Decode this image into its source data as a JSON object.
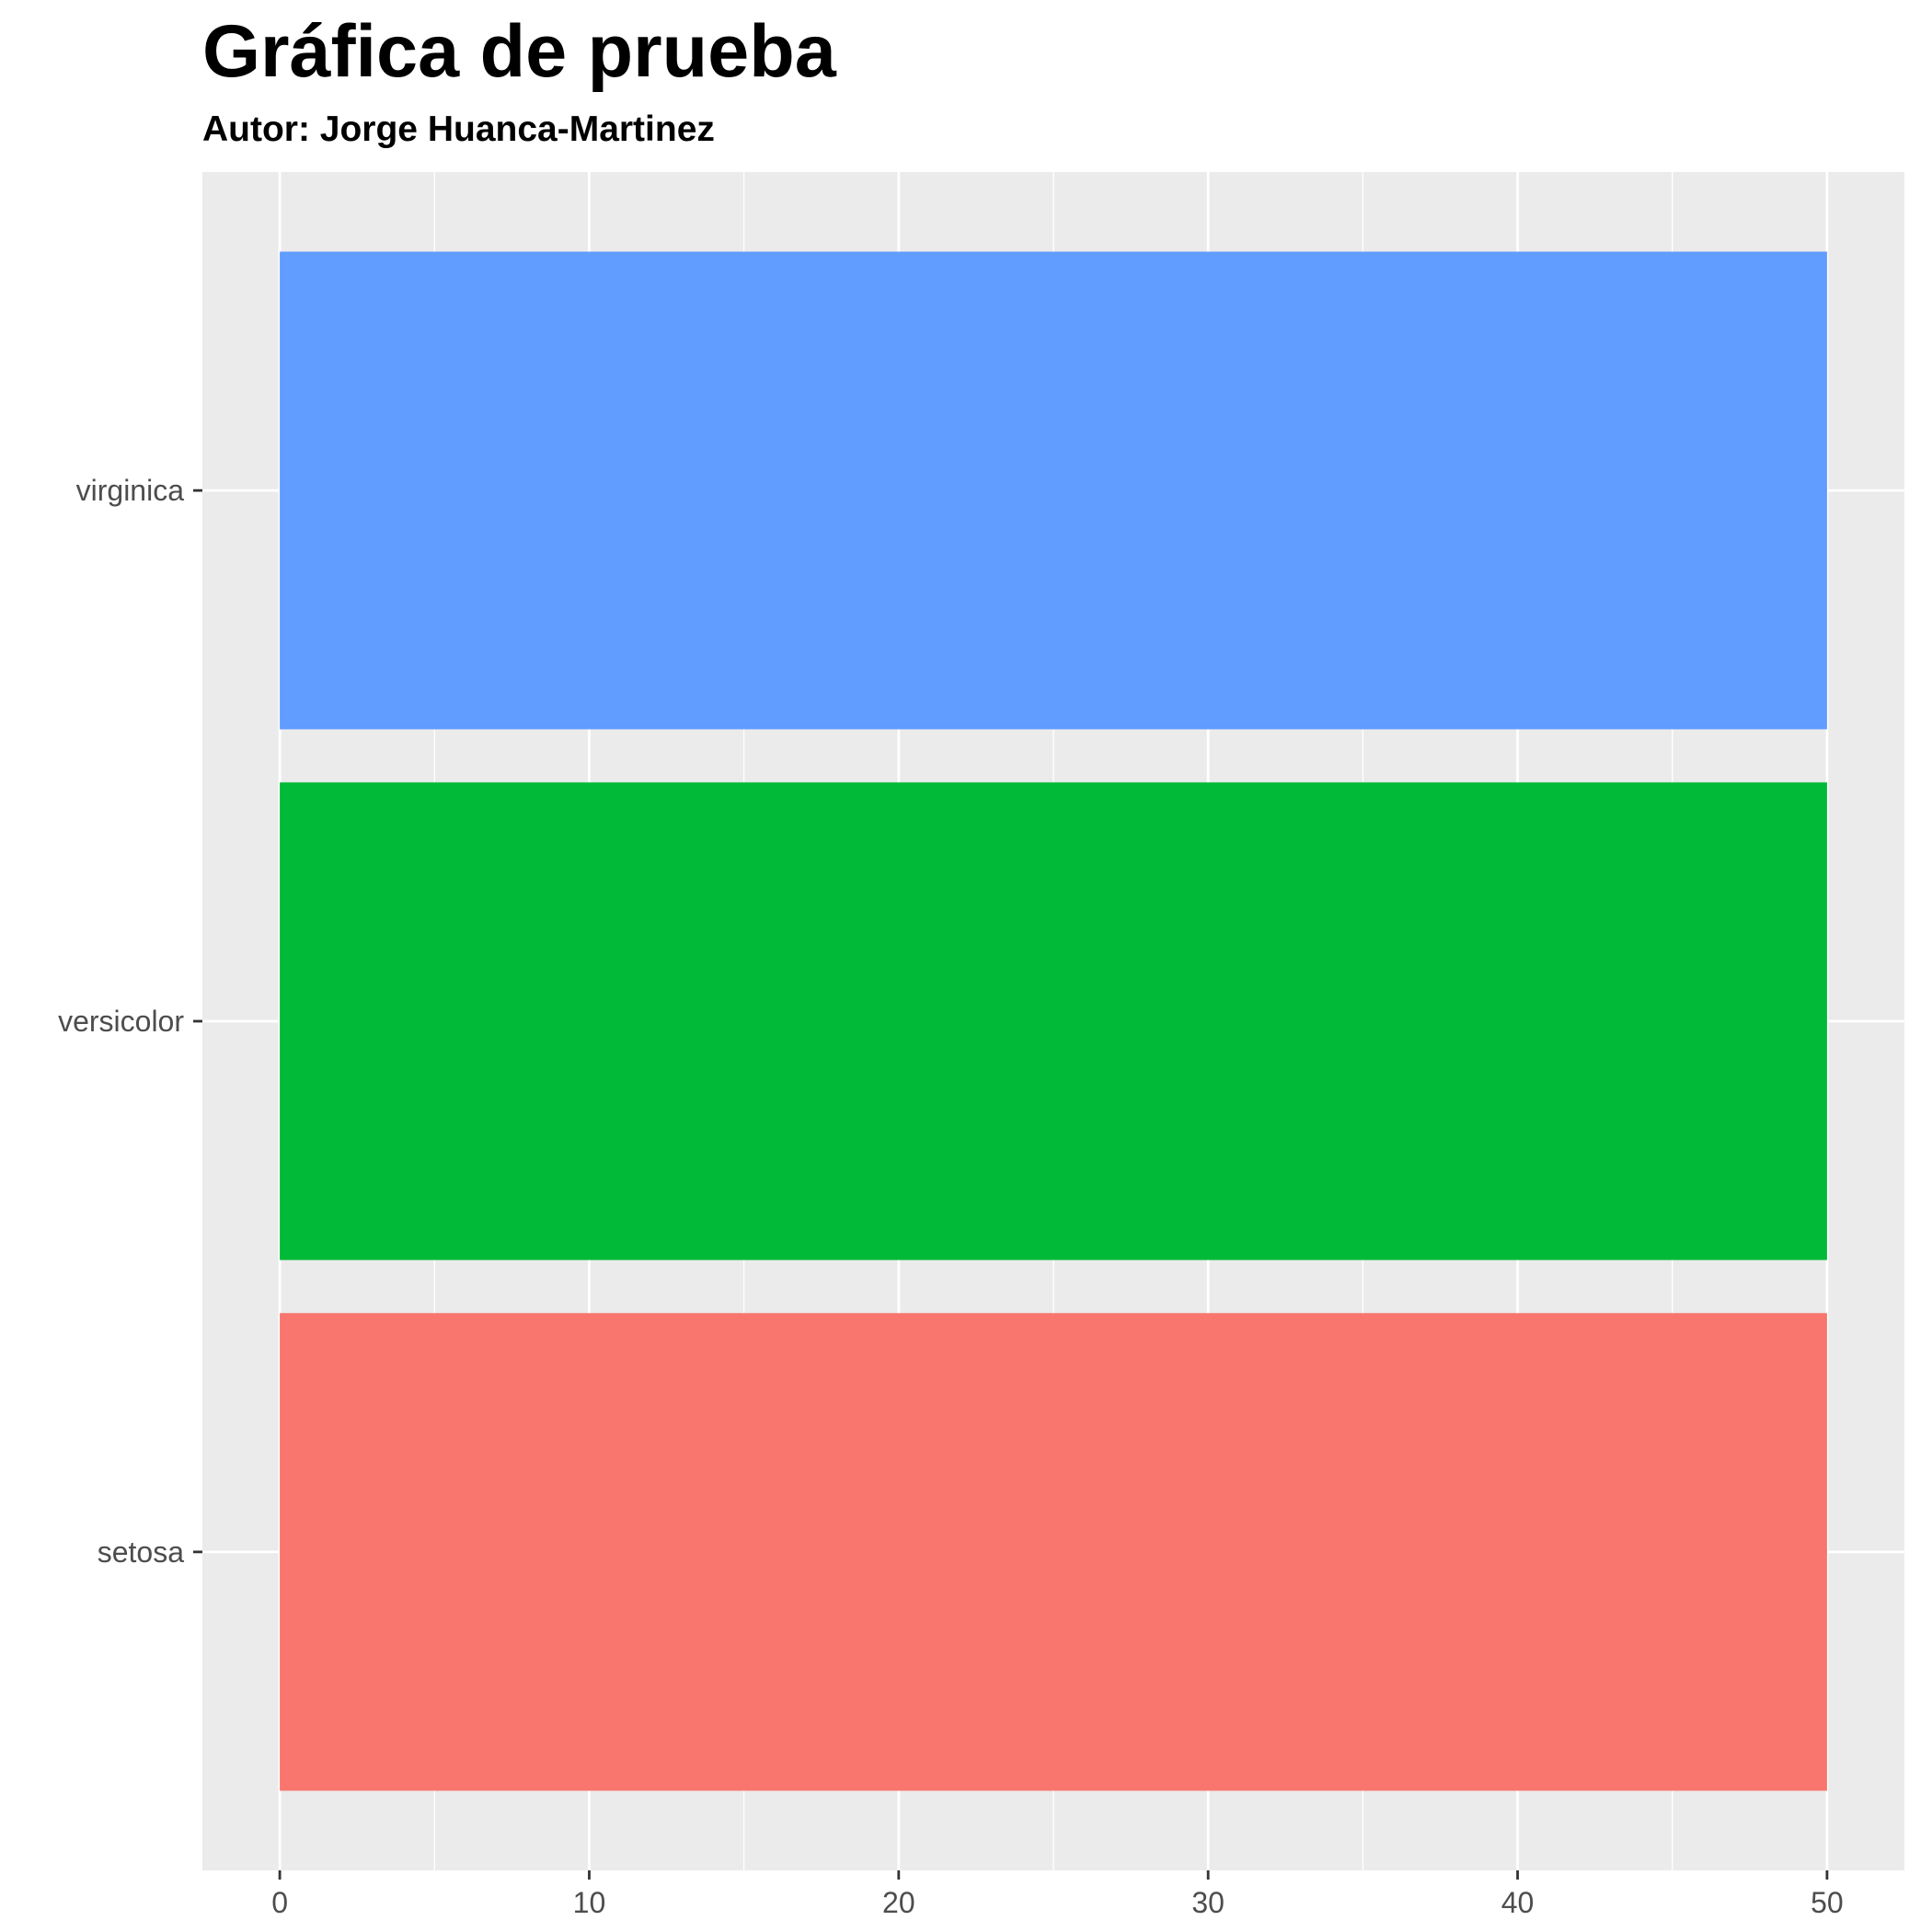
{
  "chart_data": {
    "type": "bar",
    "orientation": "horizontal",
    "title": "Gráfica de prueba",
    "subtitle": "Autor: Jorge Huanca-Martinez",
    "xlabel": "",
    "ylabel": "",
    "categories": [
      "setosa",
      "versicolor",
      "virginica"
    ],
    "values": [
      50,
      50,
      50
    ],
    "colors": [
      "#F8766D",
      "#00BA38",
      "#619CFF"
    ],
    "xlim": [
      -2.5,
      52.5
    ],
    "x_ticks": [
      0,
      10,
      20,
      30,
      40,
      50
    ],
    "x_tick_labels": [
      "0",
      "10",
      "20",
      "30",
      "40",
      "50"
    ],
    "grid": true,
    "legend": "none",
    "panel_background": "#EBEBEB",
    "grid_color": "#FFFFFF"
  }
}
